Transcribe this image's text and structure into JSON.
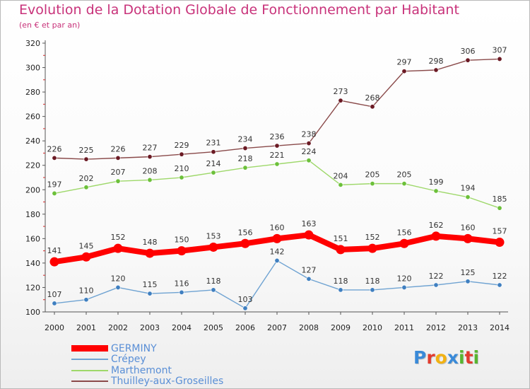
{
  "header": {
    "title": "Evolution de la Dotation Globale de Fonctionnement par Habitant",
    "subtitle": "(en € et par an)"
  },
  "logo": {
    "text": "Proxiti",
    "letters": [
      "P",
      "r",
      "o",
      "x",
      "i",
      "t",
      "i"
    ],
    "colors": [
      "#3a8ad8",
      "#e23b2e",
      "#f2b213",
      "#3a8ad8",
      "#58b530",
      "#e23b2e",
      "#58b530"
    ]
  },
  "chart_data": {
    "type": "line",
    "title": "Evolution de la Dotation Globale de Fonctionnement par Habitant",
    "subtitle": "(en € et par an)",
    "xlabel": "",
    "ylabel": "",
    "x": [
      "2000",
      "2001",
      "2002",
      "2003",
      "2004",
      "2005",
      "2006",
      "2007",
      "2008",
      "2009",
      "2010",
      "2011",
      "2012",
      "2013",
      "2014"
    ],
    "ylim": [
      100,
      320
    ],
    "yticks": [
      100,
      120,
      140,
      160,
      180,
      200,
      220,
      240,
      260,
      280,
      300,
      320
    ],
    "grid": false,
    "legend_position": "bottom-left",
    "series": [
      {
        "name": "GERMINY",
        "color": "#ff0000",
        "point_color": "#ff0000",
        "label_color": "#333333",
        "emphasis": true,
        "values": [
          141,
          145,
          152,
          148,
          150,
          153,
          156,
          160,
          163,
          151,
          152,
          156,
          162,
          160,
          157
        ]
      },
      {
        "name": "Crépey",
        "color": "#6fa3d2",
        "point_color": "#3f7fc0",
        "label_color": "#333333",
        "emphasis": false,
        "values": [
          107,
          110,
          120,
          115,
          116,
          118,
          103,
          142,
          127,
          118,
          118,
          120,
          122,
          125,
          122
        ]
      },
      {
        "name": "Marthemont",
        "color": "#9ed86a",
        "point_color": "#6cc03a",
        "label_color": "#333333",
        "emphasis": false,
        "values": [
          197,
          202,
          207,
          208,
          210,
          214,
          218,
          221,
          224,
          204,
          205,
          205,
          199,
          194,
          185
        ]
      },
      {
        "name": "Thuilley-aux-Groseilles",
        "color": "#8a4a4a",
        "point_color": "#6b1a24",
        "label_color": "#333333",
        "emphasis": false,
        "values": [
          226,
          225,
          226,
          227,
          229,
          231,
          234,
          236,
          238,
          273,
          268,
          297,
          298,
          306,
          307
        ]
      }
    ]
  }
}
